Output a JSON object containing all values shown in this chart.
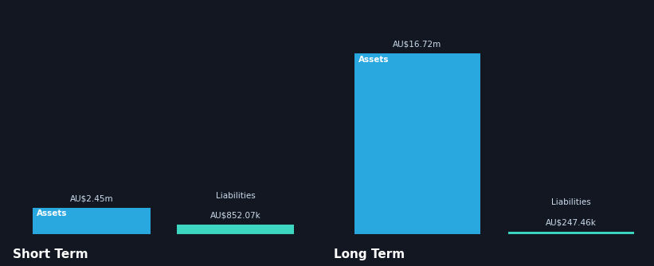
{
  "background_color": "#131722",
  "text_color": "#ffffff",
  "label_color": "#ccddee",
  "asset_color": "#29a8e0",
  "liability_color": "#3dd6c0",
  "short_term": {
    "assets_value": 2.45,
    "liabilities_value": 0.85207,
    "assets_label": "AU$2.45m",
    "liabilities_label": "AU$852.07k",
    "assets_text": "Assets",
    "liabilities_text": "Liabilities",
    "section_title": "Short Term"
  },
  "long_term": {
    "assets_value": 16.72,
    "liabilities_value": 0.24746,
    "assets_label": "AU$16.72m",
    "liabilities_label": "AU$247.46k",
    "assets_text": "Assets",
    "liabilities_text": "Liabilities",
    "section_title": "Long Term"
  },
  "global_max": 16.72,
  "figsize": [
    8.21,
    3.34
  ],
  "dpi": 100
}
